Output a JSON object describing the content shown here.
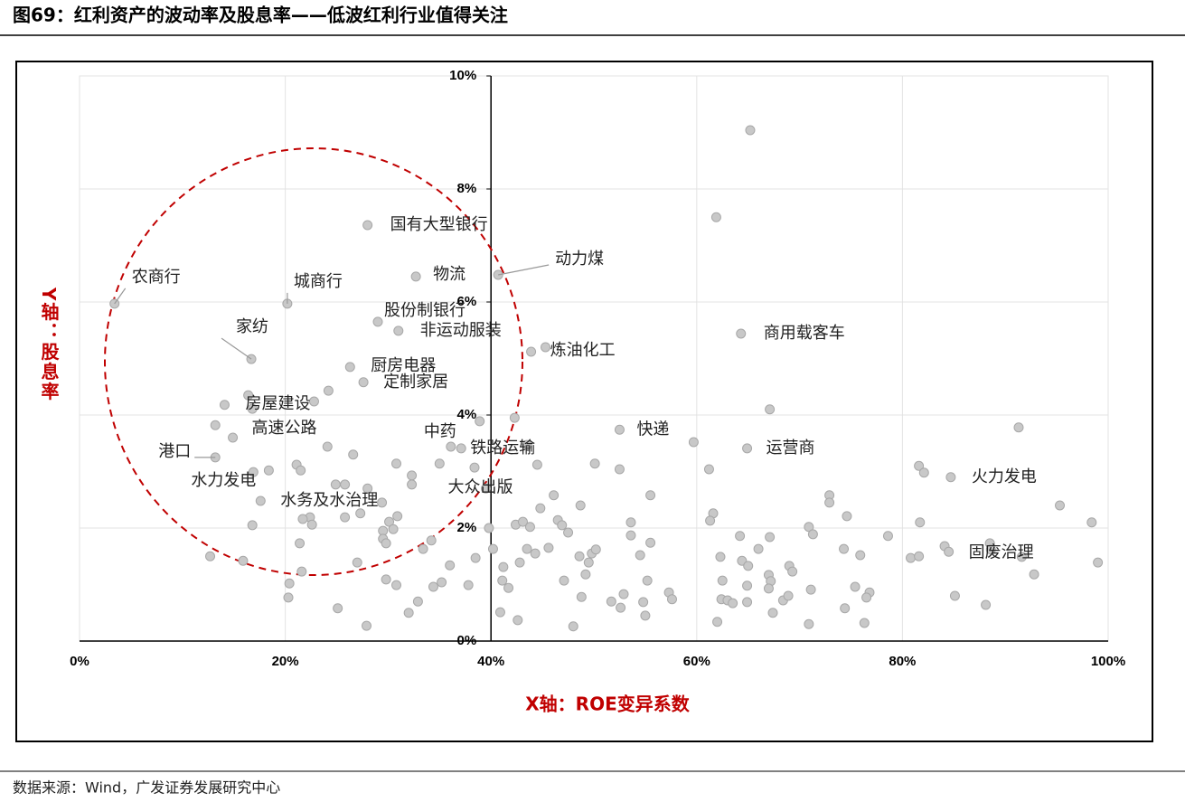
{
  "chart_data": {
    "type": "scatter",
    "title": "图69：红利资产的波动率及股息率——低波红利行业值得关注",
    "x_label": "X轴：ROE变异系数",
    "y_label": "Y轴：股息率",
    "source": "数据来源：Wind，广发证券发展研究中心",
    "xlim": [
      0,
      100
    ],
    "ylim": [
      0,
      10
    ],
    "xticks": [
      {
        "value": 0,
        "label": "0%"
      },
      {
        "value": 20,
        "label": "20%"
      },
      {
        "value": 40,
        "label": "40%"
      },
      {
        "value": 60,
        "label": "60%"
      },
      {
        "value": 80,
        "label": "80%"
      },
      {
        "value": 100,
        "label": "100%"
      }
    ],
    "yticks": [
      {
        "value": 0,
        "label": "0%"
      },
      {
        "value": 2,
        "label": "2%"
      },
      {
        "value": 4,
        "label": "4%"
      },
      {
        "value": 6,
        "label": "6%"
      },
      {
        "value": 8,
        "label": "8%"
      },
      {
        "value": 10,
        "label": "10%"
      }
    ],
    "grid": true,
    "color": "#c8c8c8",
    "series": [
      {
        "color": "#c8c8c8",
        "x": [
          65.2,
          61.9,
          38.9,
          42.3,
          43.5,
          45.3,
          38.4,
          44.5,
          35.0,
          32.3,
          30.8,
          32.3,
          24.2,
          22.8,
          16.4,
          16.8,
          13.2,
          24.1,
          26.6,
          21.1,
          21.5,
          18.4,
          24.9,
          25.8,
          28.0,
          27.3,
          25.8,
          22.4,
          21.7,
          22.6,
          16.8,
          21.4,
          29.4,
          29.5,
          30.1,
          30.5,
          30.9,
          29.5,
          29.8,
          33.4,
          34.2,
          36.0,
          38.5,
          40.2,
          39.8,
          12.7,
          15.9,
          21.6,
          20.4,
          20.3,
          27.0,
          29.8,
          30.8,
          35.2,
          34.4,
          37.8,
          32.9,
          32.0,
          25.1,
          27.9,
          41.2,
          41.1,
          41.7,
          40.9,
          42.6,
          42.8,
          43.5,
          44.3,
          42.4,
          43.1,
          43.8,
          44.8,
          46.1,
          46.5,
          46.9,
          45.6,
          48.7,
          50.1,
          47.5,
          48.6,
          49.5,
          49.8,
          50.2,
          49.2,
          47.1,
          48.8,
          48.0,
          51.7,
          52.6,
          52.9,
          52.5,
          53.6,
          53.6,
          54.5,
          55.2,
          55.5,
          55.5,
          54.8,
          55.0,
          57.3,
          57.6,
          59.7,
          61.2,
          61.6,
          61.3,
          62.3,
          62.5,
          62.4,
          63.0,
          63.5,
          62.0,
          64.2,
          64.4,
          65.0,
          64.9,
          64.9,
          66.0,
          67.1,
          67.1,
          67.0,
          67.2,
          67.0,
          67.4,
          68.4,
          69.0,
          69.3,
          68.9,
          70.9,
          71.3,
          71.1,
          70.9,
          72.9,
          72.9,
          74.6,
          74.3,
          75.9,
          75.4,
          76.8,
          76.5,
          74.4,
          76.3,
          78.6,
          80.8,
          81.6,
          81.7,
          81.6,
          82.1,
          84.1,
          85.1,
          88.1,
          88.5,
          88.6,
          91.6,
          91.3,
          92.8,
          95.3,
          98.4,
          99.0
        ],
        "values": [
          9.04,
          7.5,
          3.89,
          3.95,
          3.47,
          5.2,
          3.07,
          3.12,
          3.14,
          2.93,
          3.14,
          2.77,
          4.43,
          4.24,
          4.35,
          4.11,
          3.82,
          3.44,
          3.3,
          3.12,
          3.02,
          3.02,
          2.77,
          2.77,
          2.7,
          2.26,
          2.19,
          2.19,
          2.16,
          2.06,
          2.05,
          1.73,
          2.45,
          1.95,
          2.11,
          1.98,
          2.21,
          1.81,
          1.73,
          1.63,
          1.78,
          1.34,
          1.47,
          1.63,
          2.0,
          1.5,
          1.42,
          1.23,
          1.02,
          0.77,
          1.39,
          1.09,
          0.99,
          1.04,
          0.96,
          0.99,
          0.7,
          0.5,
          0.58,
          0.27,
          1.31,
          1.07,
          0.94,
          0.51,
          0.37,
          1.39,
          1.63,
          1.55,
          2.06,
          2.11,
          2.02,
          2.35,
          2.58,
          2.14,
          2.05,
          1.65,
          2.4,
          3.14,
          1.92,
          1.5,
          1.39,
          1.55,
          1.62,
          1.18,
          1.07,
          0.78,
          0.26,
          0.7,
          0.59,
          0.83,
          3.04,
          2.1,
          1.87,
          1.52,
          1.07,
          2.58,
          1.74,
          0.69,
          0.45,
          0.86,
          0.74,
          3.52,
          3.04,
          2.26,
          2.13,
          1.49,
          1.07,
          0.74,
          0.72,
          0.67,
          0.34,
          1.86,
          1.42,
          1.33,
          0.98,
          0.69,
          1.63,
          4.1,
          1.84,
          1.17,
          1.06,
          0.93,
          0.5,
          0.72,
          1.33,
          1.23,
          0.8,
          2.02,
          1.89,
          0.91,
          0.3,
          2.58,
          2.45,
          2.21,
          1.63,
          1.52,
          0.96,
          0.86,
          0.77,
          0.58,
          0.32,
          1.86,
          1.47,
          1.5,
          2.1,
          3.1,
          2.98,
          1.68,
          0.8,
          0.64,
          1.73,
          1.62,
          1.49,
          3.78,
          1.18,
          2.4,
          2.1,
          1.39
        ]
      }
    ],
    "annotations": [
      {
        "text": "农商行",
        "x": 3.4,
        "y": 5.97
      },
      {
        "text": "城商行",
        "x": 20.2,
        "y": 5.97
      },
      {
        "text": "国有大型银行",
        "x": 28.0,
        "y": 7.36
      },
      {
        "text": "物流",
        "x": 32.7,
        "y": 6.45
      },
      {
        "text": "动力煤",
        "x": 40.7,
        "y": 6.48
      },
      {
        "text": "股份制银行",
        "x": 29.0,
        "y": 5.65
      },
      {
        "text": "非运动服装",
        "x": 31.0,
        "y": 5.49
      },
      {
        "text": "家纺",
        "x": 16.7,
        "y": 4.99
      },
      {
        "text": "炼油化工",
        "x": 43.9,
        "y": 5.12
      },
      {
        "text": "商用载客车",
        "x": 64.3,
        "y": 5.44
      },
      {
        "text": "厨房电器",
        "x": 26.3,
        "y": 4.85
      },
      {
        "text": "定制家居",
        "x": 27.6,
        "y": 4.58
      },
      {
        "text": "房屋建设",
        "x": 14.1,
        "y": 4.18
      },
      {
        "text": "高速公路",
        "x": 14.9,
        "y": 3.6
      },
      {
        "text": "港口",
        "x": 13.2,
        "y": 3.25
      },
      {
        "text": "水力发电",
        "x": 16.9,
        "y": 2.99
      },
      {
        "text": "水务及水治理",
        "x": 17.6,
        "y": 2.48
      },
      {
        "text": "中药",
        "x": 36.1,
        "y": 3.44
      },
      {
        "text": "铁路运输",
        "x": 37.1,
        "y": 3.41
      },
      {
        "text": "快递",
        "x": 52.5,
        "y": 3.74
      },
      {
        "text": "运营商",
        "x": 64.9,
        "y": 3.41
      },
      {
        "text": "大众出版",
        "x": 39.5,
        "y": 2.7
      },
      {
        "text": "火力发电",
        "x": 84.7,
        "y": 2.9
      },
      {
        "text": "固废治理",
        "x": 84.5,
        "y": 1.58
      }
    ]
  }
}
